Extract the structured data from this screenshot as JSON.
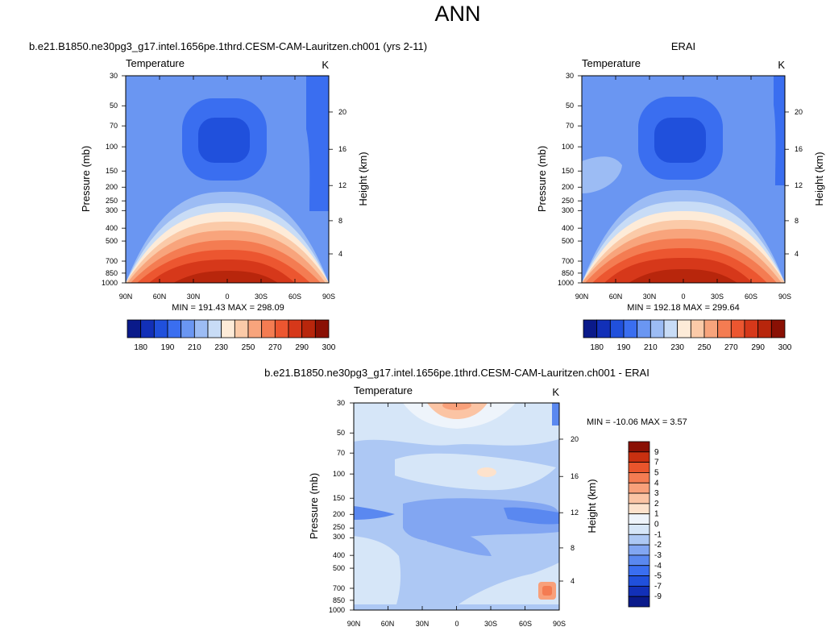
{
  "page": {
    "title": "ANN"
  },
  "colors": {
    "cb_abs": [
      "#0a1a8a",
      "#1230b8",
      "#2050dc",
      "#3a6ef0",
      "#6a96f2",
      "#9cbcf4",
      "#c8dcf6",
      "#fdebd8",
      "#fbcaa8",
      "#f8a47c",
      "#f47c52",
      "#ec5630",
      "#d6381a",
      "#b8260c",
      "#8a1004"
    ],
    "cb_diff": [
      "#0a1a8a",
      "#1230b8",
      "#2050dc",
      "#3a6ef0",
      "#5a88f0",
      "#82a6f2",
      "#adc8f4",
      "#d6e6f8",
      "#eef4fb",
      "#fde2cc",
      "#fbc4a4",
      "#f8a07a",
      "#f47c52",
      "#e9552c",
      "#c93010",
      "#8a1004"
    ]
  },
  "chart_data": [
    {
      "type": "heatmap",
      "title": "b.e21.B1850.ne30pg3_g17.intel.1656pe.1thrd.CESM-CAM-Lauritzen.ch001 (yrs 2-11)",
      "corner_left": "Temperature",
      "corner_right": "K",
      "ylabel": "Pressure (mb)",
      "ylabel_right": "Height (km)",
      "x_ticks": [
        "90N",
        "60N",
        "30N",
        "0",
        "30S",
        "60S",
        "90S"
      ],
      "y_ticks": [
        "30",
        "50",
        "70",
        "100",
        "150",
        "200",
        "250",
        "300",
        "400",
        "500",
        "700",
        "850",
        "1000"
      ],
      "y_right_ticks": [
        "4",
        "8",
        "12",
        "16",
        "20"
      ],
      "stats": "MIN = 191.43  MAX = 298.09",
      "colorbar_labels": [
        "180",
        "190",
        "210",
        "230",
        "250",
        "270",
        "290",
        "300"
      ]
    },
    {
      "type": "heatmap",
      "title": "ERAI",
      "corner_left": "Temperature",
      "corner_right": "K",
      "ylabel": "Pressure (mb)",
      "ylabel_right": "Height (km)",
      "x_ticks": [
        "90N",
        "60N",
        "30N",
        "0",
        "30S",
        "60S",
        "90S"
      ],
      "y_ticks": [
        "30",
        "50",
        "70",
        "100",
        "150",
        "200",
        "250",
        "300",
        "400",
        "500",
        "700",
        "850",
        "1000"
      ],
      "y_right_ticks": [
        "4",
        "8",
        "12",
        "16",
        "20"
      ],
      "stats": "MIN = 192.18  MAX = 299.64",
      "colorbar_labels": [
        "180",
        "190",
        "210",
        "230",
        "250",
        "270",
        "290",
        "300"
      ]
    },
    {
      "type": "heatmap",
      "title": "b.e21.B1850.ne30pg3_g17.intel.1656pe.1thrd.CESM-CAM-Lauritzen.ch001 - ERAI",
      "corner_left": "Temperature",
      "corner_right": "K",
      "ylabel": "Pressure (mb)",
      "ylabel_right": "Height (km)",
      "x_ticks": [
        "90N",
        "60N",
        "30N",
        "0",
        "30S",
        "60S",
        "90S"
      ],
      "y_ticks": [
        "30",
        "50",
        "70",
        "100",
        "150",
        "200",
        "250",
        "300",
        "400",
        "500",
        "700",
        "850",
        "1000"
      ],
      "y_right_ticks": [
        "4",
        "8",
        "12",
        "16",
        "20"
      ],
      "stats": "MIN = -10.06  MAX =   3.57",
      "colorbar_labels": [
        "9",
        "7",
        "5",
        "4",
        "3",
        "2",
        "1",
        "0",
        "-1",
        "-2",
        "-3",
        "-4",
        "-5",
        "-7",
        "-9"
      ]
    }
  ]
}
